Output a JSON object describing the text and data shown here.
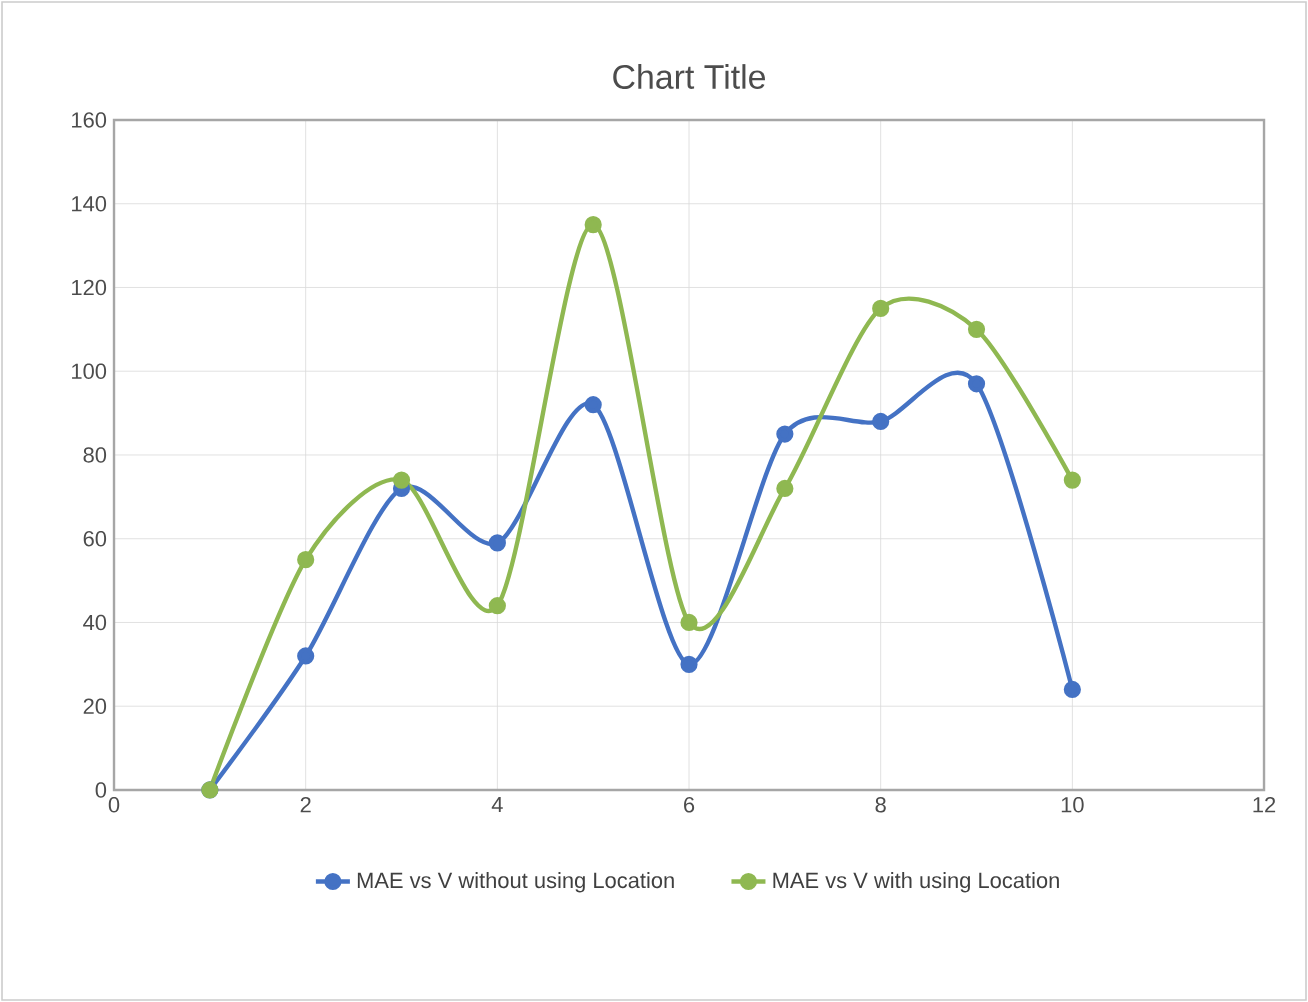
{
  "chart_data": {
    "type": "line",
    "title": "Chart Title",
    "x": [
      1,
      2,
      3,
      4,
      5,
      6,
      7,
      8,
      9,
      10
    ],
    "series": [
      {
        "name": "MAE vs V without  using Location",
        "color": "#4472c4",
        "values": [
          0,
          32,
          72,
          59,
          92,
          30,
          85,
          88,
          97,
          24
        ]
      },
      {
        "name": "MAE vs V with using Location",
        "color": "#8fb851",
        "values": [
          0,
          55,
          74,
          44,
          135,
          40,
          72,
          115,
          110,
          74
        ]
      }
    ],
    "xlim": [
      0,
      12
    ],
    "xticks": [
      0,
      2,
      4,
      6,
      8,
      10,
      12
    ],
    "ylim": [
      0,
      160
    ],
    "yticks": [
      0,
      20,
      40,
      60,
      80,
      100,
      120,
      140,
      160
    ],
    "grid": true,
    "legend": "bottom",
    "marker": "circle",
    "line_style": "solid"
  }
}
